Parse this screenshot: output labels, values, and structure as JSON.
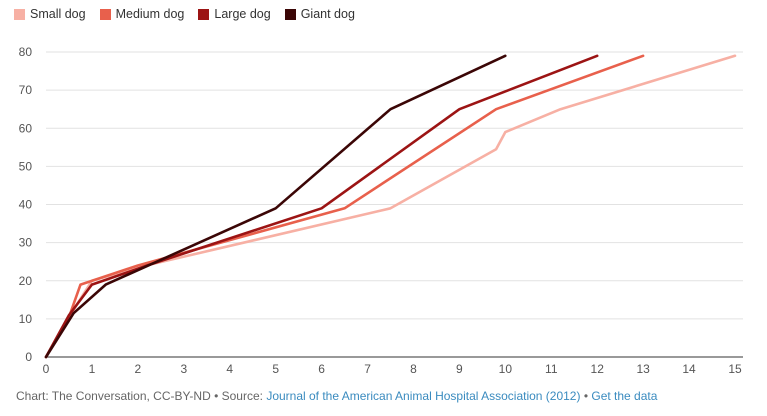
{
  "chart_data": {
    "type": "line",
    "xlabel": "",
    "ylabel": "",
    "xlim": [
      0,
      15
    ],
    "ylim": [
      0,
      80
    ],
    "x_ticks": [
      0,
      1,
      2,
      3,
      4,
      5,
      6,
      7,
      8,
      9,
      10,
      11,
      12,
      13,
      14,
      15
    ],
    "y_ticks": [
      0,
      10,
      20,
      30,
      40,
      50,
      60,
      70,
      80
    ],
    "grid": "horizontal",
    "legend_position": "top-left",
    "series": [
      {
        "name": "Small dog",
        "color": "#f7b0a4",
        "points": [
          [
            0,
            0
          ],
          [
            0.5,
            10.5
          ],
          [
            1,
            20
          ],
          [
            2,
            23.5
          ],
          [
            7.5,
            39
          ],
          [
            9.8,
            54.5
          ],
          [
            10,
            59
          ],
          [
            11.2,
            65
          ],
          [
            15,
            79
          ]
        ]
      },
      {
        "name": "Medium dog",
        "color": "#e8604c",
        "points": [
          [
            0,
            0
          ],
          [
            0.5,
            10.5
          ],
          [
            0.75,
            19
          ],
          [
            2,
            24
          ],
          [
            6.5,
            39
          ],
          [
            9.8,
            65
          ],
          [
            13,
            79
          ]
        ]
      },
      {
        "name": "Large dog",
        "color": "#9c1414",
        "points": [
          [
            0,
            0
          ],
          [
            0.5,
            11
          ],
          [
            1,
            19
          ],
          [
            2.2,
            24
          ],
          [
            6,
            39
          ],
          [
            9,
            65
          ],
          [
            12,
            79
          ]
        ]
      },
      {
        "name": "Giant dog",
        "color": "#3b0606",
        "points": [
          [
            0,
            0
          ],
          [
            0.6,
            11.5
          ],
          [
            1.3,
            19
          ],
          [
            5,
            39
          ],
          [
            7.5,
            65
          ],
          [
            10,
            79
          ]
        ]
      }
    ]
  },
  "footer": {
    "credit": "Chart: The Conversation, CC-BY-ND • Source: ",
    "source_link": "Journal of the American Animal Hospital Association (2012)",
    "separator": " • ",
    "data_link": "Get the data"
  }
}
